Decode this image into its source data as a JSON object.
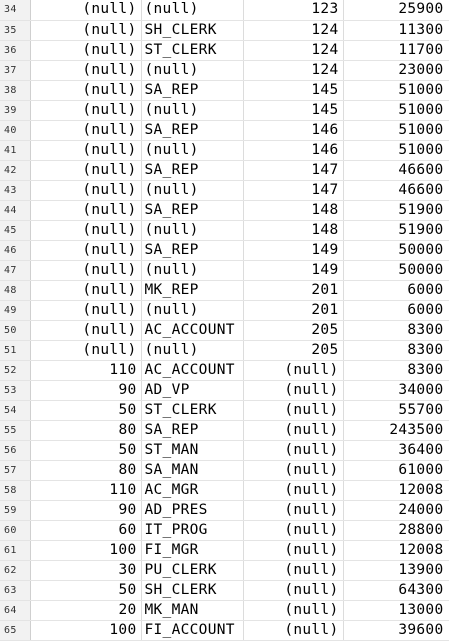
{
  "grid": {
    "null_text": "(null)",
    "rows": [
      {
        "n": "34",
        "a": "(null)",
        "b": "(null)",
        "c": "123",
        "d": "25900"
      },
      {
        "n": "35",
        "a": "(null)",
        "b": "SH_CLERK",
        "c": "124",
        "d": "11300"
      },
      {
        "n": "36",
        "a": "(null)",
        "b": "ST_CLERK",
        "c": "124",
        "d": "11700"
      },
      {
        "n": "37",
        "a": "(null)",
        "b": "(null)",
        "c": "124",
        "d": "23000"
      },
      {
        "n": "38",
        "a": "(null)",
        "b": "SA_REP",
        "c": "145",
        "d": "51000"
      },
      {
        "n": "39",
        "a": "(null)",
        "b": "(null)",
        "c": "145",
        "d": "51000"
      },
      {
        "n": "40",
        "a": "(null)",
        "b": "SA_REP",
        "c": "146",
        "d": "51000"
      },
      {
        "n": "41",
        "a": "(null)",
        "b": "(null)",
        "c": "146",
        "d": "51000"
      },
      {
        "n": "42",
        "a": "(null)",
        "b": "SA_REP",
        "c": "147",
        "d": "46600"
      },
      {
        "n": "43",
        "a": "(null)",
        "b": "(null)",
        "c": "147",
        "d": "46600"
      },
      {
        "n": "44",
        "a": "(null)",
        "b": "SA_REP",
        "c": "148",
        "d": "51900"
      },
      {
        "n": "45",
        "a": "(null)",
        "b": "(null)",
        "c": "148",
        "d": "51900"
      },
      {
        "n": "46",
        "a": "(null)",
        "b": "SA_REP",
        "c": "149",
        "d": "50000"
      },
      {
        "n": "47",
        "a": "(null)",
        "b": "(null)",
        "c": "149",
        "d": "50000"
      },
      {
        "n": "48",
        "a": "(null)",
        "b": "MK_REP",
        "c": "201",
        "d": "6000"
      },
      {
        "n": "49",
        "a": "(null)",
        "b": "(null)",
        "c": "201",
        "d": "6000"
      },
      {
        "n": "50",
        "a": "(null)",
        "b": "AC_ACCOUNT",
        "c": "205",
        "d": "8300"
      },
      {
        "n": "51",
        "a": "(null)",
        "b": "(null)",
        "c": "205",
        "d": "8300"
      },
      {
        "n": "52",
        "a": "110",
        "b": "AC_ACCOUNT",
        "c": "(null)",
        "d": "8300"
      },
      {
        "n": "53",
        "a": "90",
        "b": "AD_VP",
        "c": "(null)",
        "d": "34000"
      },
      {
        "n": "54",
        "a": "50",
        "b": "ST_CLERK",
        "c": "(null)",
        "d": "55700"
      },
      {
        "n": "55",
        "a": "80",
        "b": "SA_REP",
        "c": "(null)",
        "d": "243500"
      },
      {
        "n": "56",
        "a": "50",
        "b": "ST_MAN",
        "c": "(null)",
        "d": "36400"
      },
      {
        "n": "57",
        "a": "80",
        "b": "SA_MAN",
        "c": "(null)",
        "d": "61000"
      },
      {
        "n": "58",
        "a": "110",
        "b": "AC_MGR",
        "c": "(null)",
        "d": "12008"
      },
      {
        "n": "59",
        "a": "90",
        "b": "AD_PRES",
        "c": "(null)",
        "d": "24000"
      },
      {
        "n": "60",
        "a": "60",
        "b": "IT_PROG",
        "c": "(null)",
        "d": "28800"
      },
      {
        "n": "61",
        "a": "100",
        "b": "FI_MGR",
        "c": "(null)",
        "d": "12008"
      },
      {
        "n": "62",
        "a": "30",
        "b": "PU_CLERK",
        "c": "(null)",
        "d": "13900"
      },
      {
        "n": "63",
        "a": "50",
        "b": "SH_CLERK",
        "c": "(null)",
        "d": "64300"
      },
      {
        "n": "64",
        "a": "20",
        "b": "MK_MAN",
        "c": "(null)",
        "d": "13000"
      },
      {
        "n": "65",
        "a": "100",
        "b": "FI_ACCOUNT",
        "c": "(null)",
        "d": "39600"
      }
    ]
  }
}
